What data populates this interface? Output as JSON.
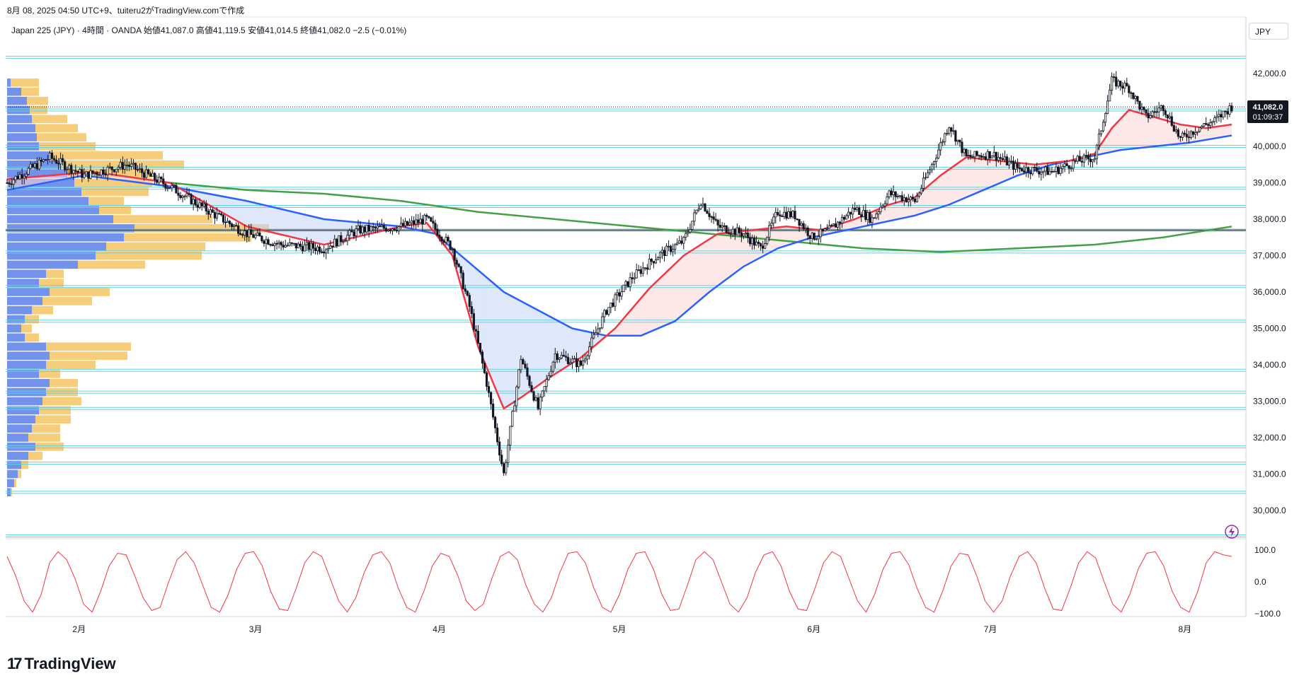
{
  "header": {
    "created": "8月 08, 2025 04:50 UTC+9、tuiteru2がTradingView.comで作成"
  },
  "symbol": {
    "name": "Japan 225 (JPY)",
    "interval": "4時間",
    "broker": "OANDA",
    "open_label": "始値",
    "open": "41,087.0",
    "high_label": "高値",
    "high": "41,119.5",
    "low_label": "安値",
    "low": "41,014.5",
    "close_label": "終値",
    "close": "41,082.0",
    "change": "−2.5 (−0.01%)"
  },
  "currency": "JPY",
  "price_tag": {
    "price": "41,082.0",
    "countdown": "01:09:37"
  },
  "logo": {
    "mark": "17",
    "text": "TradingView"
  },
  "colors": {
    "candle": "#131722",
    "ema_fast": "#f23645",
    "ema_mid": "#2962ff",
    "ema_slow": "#43a047",
    "hline": "#5fd3e0",
    "red_line": "#b71c1c",
    "vp_buy": "#5b7fe8",
    "vp_sell": "#f5c463",
    "oscillator": "#f23645",
    "fill_up": "#fbd5d5",
    "fill_down": "#c5d3f5"
  },
  "chart_data": [
    {
      "type": "candlestick",
      "x_axis": {
        "labels": [
          "2月",
          "3月",
          "4月",
          "5月",
          "6月",
          "7月",
          "8月"
        ]
      },
      "y_axis": {
        "ticks": [
          "42,000.0",
          "41,000.0",
          "40,000.0",
          "39,000.0",
          "38,000.0",
          "37,000.0",
          "36,000.0",
          "35,000.0",
          "34,000.0",
          "33,000.0",
          "32,000.0",
          "31,000.0",
          "30,000.0"
        ],
        "range": [
          29000,
          43200
        ]
      },
      "price_path": [
        [
          0,
          39000
        ],
        [
          5,
          39700
        ],
        [
          9,
          39200
        ],
        [
          14,
          39500
        ],
        [
          19,
          38900
        ],
        [
          23,
          38300
        ],
        [
          28,
          37600
        ],
        [
          32,
          37300
        ],
        [
          37,
          37200
        ],
        [
          41,
          37700
        ],
        [
          46,
          37800
        ],
        [
          49,
          38000
        ],
        [
          52,
          37200
        ],
        [
          54,
          35600
        ],
        [
          56,
          33500
        ],
        [
          58,
          31000
        ],
        [
          60,
          34200
        ],
        [
          62,
          32800
        ],
        [
          64,
          34300
        ],
        [
          67,
          34000
        ],
        [
          70,
          35500
        ],
        [
          73,
          36400
        ],
        [
          76,
          37000
        ],
        [
          79,
          37400
        ],
        [
          81,
          38500
        ],
        [
          83,
          37800
        ],
        [
          86,
          37600
        ],
        [
          88,
          37200
        ],
        [
          90,
          38200
        ],
        [
          92,
          38100
        ],
        [
          94,
          37500
        ],
        [
          96,
          37700
        ],
        [
          99,
          38300
        ],
        [
          101,
          38000
        ],
        [
          103,
          38700
        ],
        [
          106,
          38500
        ],
        [
          108,
          39500
        ],
        [
          110,
          40600
        ],
        [
          112,
          39700
        ],
        [
          115,
          39800
        ],
        [
          118,
          39400
        ],
        [
          122,
          39300
        ],
        [
          125,
          39600
        ],
        [
          127,
          39700
        ],
        [
          129,
          41800
        ],
        [
          131,
          41600
        ],
        [
          133,
          40800
        ],
        [
          135,
          41100
        ],
        [
          137,
          40200
        ],
        [
          139,
          40500
        ],
        [
          141,
          40700
        ],
        [
          143,
          41100
        ]
      ],
      "ema_fast": [
        [
          0,
          39100
        ],
        [
          10,
          39300
        ],
        [
          19,
          39000
        ],
        [
          28,
          37800
        ],
        [
          37,
          37300
        ],
        [
          46,
          37800
        ],
        [
          49,
          37900
        ],
        [
          52,
          37000
        ],
        [
          55,
          34500
        ],
        [
          58,
          32800
        ],
        [
          60,
          33100
        ],
        [
          63,
          33600
        ],
        [
          67,
          34200
        ],
        [
          71,
          35000
        ],
        [
          75,
          36100
        ],
        [
          79,
          37000
        ],
        [
          83,
          37600
        ],
        [
          87,
          37700
        ],
        [
          91,
          37800
        ],
        [
          95,
          37700
        ],
        [
          99,
          38000
        ],
        [
          103,
          38400
        ],
        [
          106,
          38600
        ],
        [
          109,
          39200
        ],
        [
          112,
          39700
        ],
        [
          116,
          39600
        ],
        [
          120,
          39500
        ],
        [
          124,
          39600
        ],
        [
          127,
          39800
        ],
        [
          129,
          40500
        ],
        [
          131,
          41000
        ],
        [
          134,
          40800
        ],
        [
          137,
          40600
        ],
        [
          140,
          40500
        ],
        [
          143,
          40600
        ]
      ],
      "ema_mid": [
        [
          0,
          38800
        ],
        [
          9,
          39200
        ],
        [
          19,
          38900
        ],
        [
          28,
          38500
        ],
        [
          37,
          38000
        ],
        [
          46,
          37800
        ],
        [
          50,
          37600
        ],
        [
          54,
          36800
        ],
        [
          58,
          36000
        ],
        [
          62,
          35500
        ],
        [
          66,
          35000
        ],
        [
          70,
          34800
        ],
        [
          74,
          34800
        ],
        [
          78,
          35200
        ],
        [
          82,
          36000
        ],
        [
          86,
          36700
        ],
        [
          90,
          37200
        ],
        [
          94,
          37500
        ],
        [
          98,
          37700
        ],
        [
          102,
          37900
        ],
        [
          106,
          38100
        ],
        [
          110,
          38400
        ],
        [
          114,
          38800
        ],
        [
          118,
          39200
        ],
        [
          122,
          39500
        ],
        [
          126,
          39700
        ],
        [
          130,
          39900
        ],
        [
          134,
          40000
        ],
        [
          138,
          40100
        ],
        [
          143,
          40300
        ]
      ],
      "ema_slow": [
        [
          19,
          39000
        ],
        [
          28,
          38800
        ],
        [
          37,
          38700
        ],
        [
          46,
          38500
        ],
        [
          55,
          38200
        ],
        [
          64,
          38000
        ],
        [
          73,
          37800
        ],
        [
          82,
          37600
        ],
        [
          91,
          37400
        ],
        [
          100,
          37200
        ],
        [
          109,
          37100
        ],
        [
          118,
          37200
        ],
        [
          127,
          37300
        ],
        [
          135,
          37500
        ],
        [
          143,
          37800
        ]
      ],
      "horizontal_levels": [
        42450,
        41000,
        40000,
        39400,
        38850,
        38350,
        37700,
        37100,
        36150,
        35200,
        33850,
        33250,
        32800,
        31750,
        31300,
        30500,
        29300
      ],
      "red_level": 37700,
      "volume_profile": [
        {
          "price": 41750,
          "buy": 5,
          "sell": 40
        },
        {
          "price": 41500,
          "buy": 20,
          "sell": 25
        },
        {
          "price": 41250,
          "buy": 28,
          "sell": 30
        },
        {
          "price": 41000,
          "buy": 32,
          "sell": 25
        },
        {
          "price": 40750,
          "buy": 35,
          "sell": 50
        },
        {
          "price": 40500,
          "buy": 40,
          "sell": 60
        },
        {
          "price": 40250,
          "buy": 42,
          "sell": 70
        },
        {
          "price": 40000,
          "buy": 45,
          "sell": 80
        },
        {
          "price": 39750,
          "buy": 60,
          "sell": 160
        },
        {
          "price": 39500,
          "buy": 75,
          "sell": 175
        },
        {
          "price": 39250,
          "buy": 85,
          "sell": 120
        },
        {
          "price": 39000,
          "buy": 95,
          "sell": 110
        },
        {
          "price": 38750,
          "buy": 105,
          "sell": 95
        },
        {
          "price": 38500,
          "buy": 115,
          "sell": 50
        },
        {
          "price": 38250,
          "buy": 130,
          "sell": 45
        },
        {
          "price": 38000,
          "buy": 150,
          "sell": 140
        },
        {
          "price": 37750,
          "buy": 180,
          "sell": 190
        },
        {
          "price": 37500,
          "buy": 165,
          "sell": 180
        },
        {
          "price": 37250,
          "buy": 140,
          "sell": 140
        },
        {
          "price": 37000,
          "buy": 125,
          "sell": 150
        },
        {
          "price": 36750,
          "buy": 100,
          "sell": 95
        },
        {
          "price": 36500,
          "buy": 55,
          "sell": 25
        },
        {
          "price": 36250,
          "buy": 45,
          "sell": 35
        },
        {
          "price": 36000,
          "buy": 60,
          "sell": 85
        },
        {
          "price": 35750,
          "buy": 50,
          "sell": 70
        },
        {
          "price": 35500,
          "buy": 35,
          "sell": 30
        },
        {
          "price": 35250,
          "buy": 25,
          "sell": 20
        },
        {
          "price": 35000,
          "buy": 20,
          "sell": 15
        },
        {
          "price": 34750,
          "buy": 25,
          "sell": 20
        },
        {
          "price": 34500,
          "buy": 55,
          "sell": 120
        },
        {
          "price": 34250,
          "buy": 60,
          "sell": 110
        },
        {
          "price": 34000,
          "buy": 55,
          "sell": 70
        },
        {
          "price": 33750,
          "buy": 45,
          "sell": 30
        },
        {
          "price": 33500,
          "buy": 60,
          "sell": 40
        },
        {
          "price": 33250,
          "buy": 55,
          "sell": 45
        },
        {
          "price": 33000,
          "buy": 50,
          "sell": 55
        },
        {
          "price": 32750,
          "buy": 45,
          "sell": 45
        },
        {
          "price": 32500,
          "buy": 40,
          "sell": 50
        },
        {
          "price": 32250,
          "buy": 35,
          "sell": 40
        },
        {
          "price": 32000,
          "buy": 30,
          "sell": 45
        },
        {
          "price": 31750,
          "buy": 40,
          "sell": 40
        },
        {
          "price": 31500,
          "buy": 30,
          "sell": 20
        },
        {
          "price": 31250,
          "buy": 20,
          "sell": 10
        },
        {
          "price": 31000,
          "buy": 15,
          "sell": 5
        },
        {
          "price": 30750,
          "buy": 10,
          "sell": 3
        },
        {
          "price": 30500,
          "buy": 5,
          "sell": 2
        }
      ]
    },
    {
      "type": "line",
      "y_axis": {
        "ticks": [
          "100.0",
          "0.0",
          "−100.0"
        ],
        "range": [
          -110,
          110
        ]
      },
      "series": [
        {
          "values": [
            80,
            20,
            -60,
            -95,
            -40,
            60,
            95,
            70,
            10,
            -70,
            -95,
            -30,
            50,
            90,
            85,
            20,
            -50,
            -90,
            -80,
            0,
            70,
            95,
            60,
            -10,
            -80,
            -95,
            -40,
            40,
            90,
            95,
            50,
            -30,
            -85,
            -90,
            -20,
            60,
            95,
            80,
            10,
            -60,
            -95,
            -50,
            30,
            85,
            95,
            60,
            -20,
            -80,
            -95,
            -30,
            50,
            90,
            80,
            20,
            -60,
            -90,
            -70,
            10,
            80,
            95,
            70,
            -10,
            -70,
            -95,
            -50,
            30,
            90,
            95,
            60,
            -20,
            -80,
            -95,
            -40,
            40,
            90,
            95,
            40,
            -40,
            -90,
            -85,
            -10,
            70,
            95,
            70,
            0,
            -70,
            -95,
            -50,
            30,
            85,
            95,
            50,
            -30,
            -85,
            -90,
            -20,
            60,
            95,
            80,
            10,
            -60,
            -95,
            -40,
            40,
            90,
            95,
            55,
            -20,
            -80,
            -95,
            -30,
            50,
            90,
            85,
            20,
            -60,
            -95,
            -60,
            20,
            80,
            95,
            60,
            -20,
            -85,
            -90,
            -20,
            60,
            95,
            75,
            0,
            -70,
            -95,
            -40,
            40,
            90,
            95,
            50,
            -30,
            -80,
            -95,
            -30,
            60,
            95,
            85,
            80
          ]
        }
      ]
    }
  ]
}
